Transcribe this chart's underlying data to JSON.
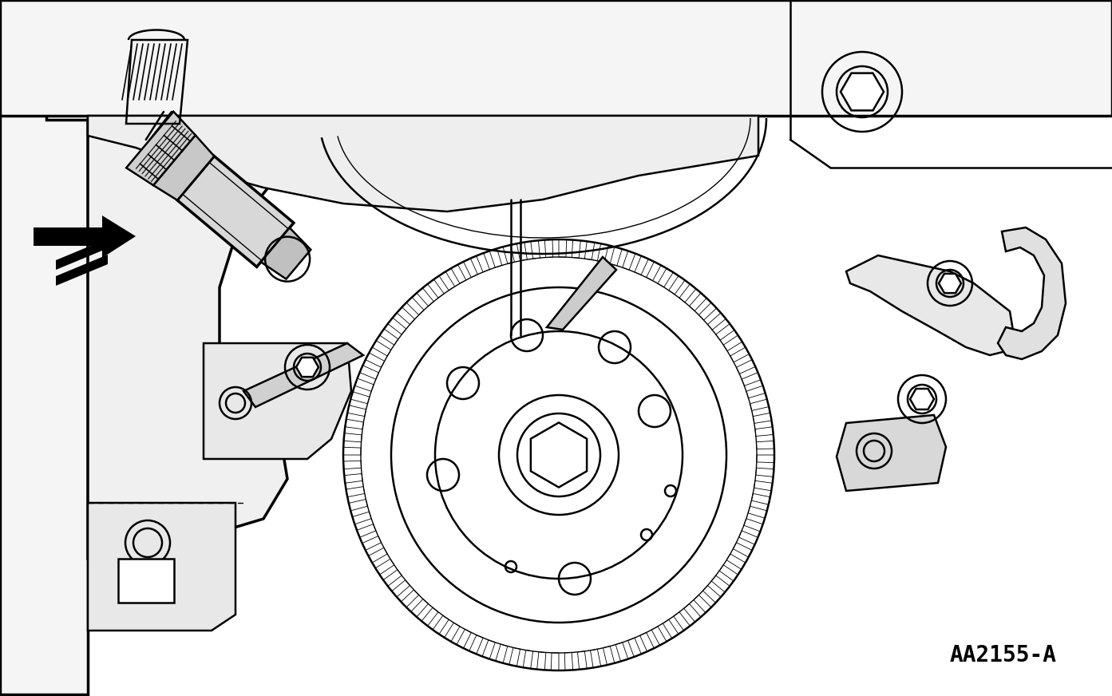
{
  "label": "AA2155-A",
  "bg_color": "#ffffff",
  "line_color": "#000000",
  "fig_width": 13.93,
  "fig_height": 8.72,
  "dpi": 100
}
